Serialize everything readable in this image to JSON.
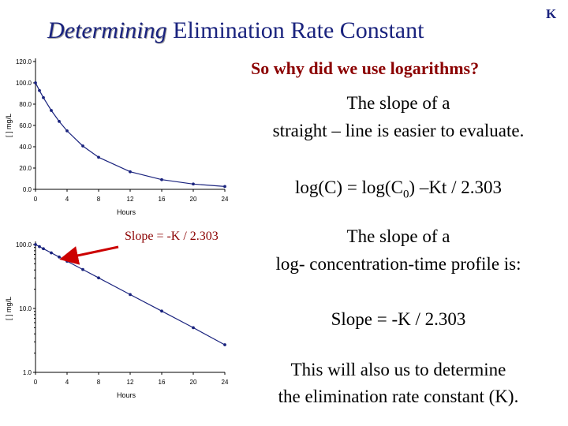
{
  "header": {
    "title_em": "Determining",
    "title_rest": " Elimination Rate Constant",
    "corner_label": "K"
  },
  "text": {
    "question": "So why did we use logarithms?",
    "slope_line1": "The slope of a",
    "slope_line2": "straight – line is easier to evaluate.",
    "eq_prefix": "log(C) = log(C",
    "eq_sub": "0",
    "eq_suffix": ") –Kt / 2.303",
    "log_line1": "The slope of a",
    "log_line2": "log- concentration-time profile is:",
    "slope_formula": "Slope = -K / 2.303",
    "conclusion_line1": "This will also us to determine",
    "conclusion_line2": "the elimination rate constant (K)."
  },
  "annotation": {
    "label": "Slope = -K / 2.303",
    "arrow_color": "#cc0000"
  },
  "colors": {
    "title": "#1a237e",
    "question": "#8b0000",
    "series": "#1a237e"
  },
  "chart_data": [
    {
      "type": "line",
      "scale": "linear",
      "xlabel": "Hours",
      "ylabel": "[ ] mg/L",
      "xticks": [
        0,
        4,
        8,
        12,
        16,
        20,
        24
      ],
      "yticks": [
        0.0,
        20.0,
        40.0,
        60.0,
        80.0,
        100.0,
        120.0
      ],
      "ytick_labels": [
        "0.0",
        "20.0",
        "40.0",
        "60.0",
        "80.0",
        "100.0",
        "120.0"
      ],
      "xlim": [
        0,
        24
      ],
      "ylim": [
        0,
        120
      ],
      "grid": false,
      "series": [
        {
          "x": [
            0,
            0.5,
            1,
            2,
            3,
            4,
            6,
            8,
            12,
            16,
            20,
            24
          ],
          "y": [
            100,
            92.8,
            86.1,
            74.1,
            63.8,
            54.9,
            40.7,
            30.1,
            16.5,
            9.1,
            5.0,
            2.7
          ]
        }
      ]
    },
    {
      "type": "line",
      "scale": "log",
      "xlabel": "Hours",
      "ylabel": "[ ] mg/L",
      "xticks": [
        0,
        4,
        8,
        12,
        16,
        20,
        24
      ],
      "yticks": [
        1,
        10,
        100
      ],
      "ytick_labels": [
        "1.0",
        "10.0",
        "100.0"
      ],
      "xlim": [
        0,
        24
      ],
      "ylim": [
        1,
        100
      ],
      "grid": false,
      "series": [
        {
          "x": [
            0,
            0.5,
            1,
            2,
            3,
            4,
            6,
            8,
            12,
            16,
            20,
            24
          ],
          "y": [
            100,
            92.8,
            86.1,
            74.1,
            63.8,
            54.9,
            40.7,
            30.1,
            16.5,
            9.1,
            5.0,
            2.7
          ]
        }
      ]
    }
  ]
}
